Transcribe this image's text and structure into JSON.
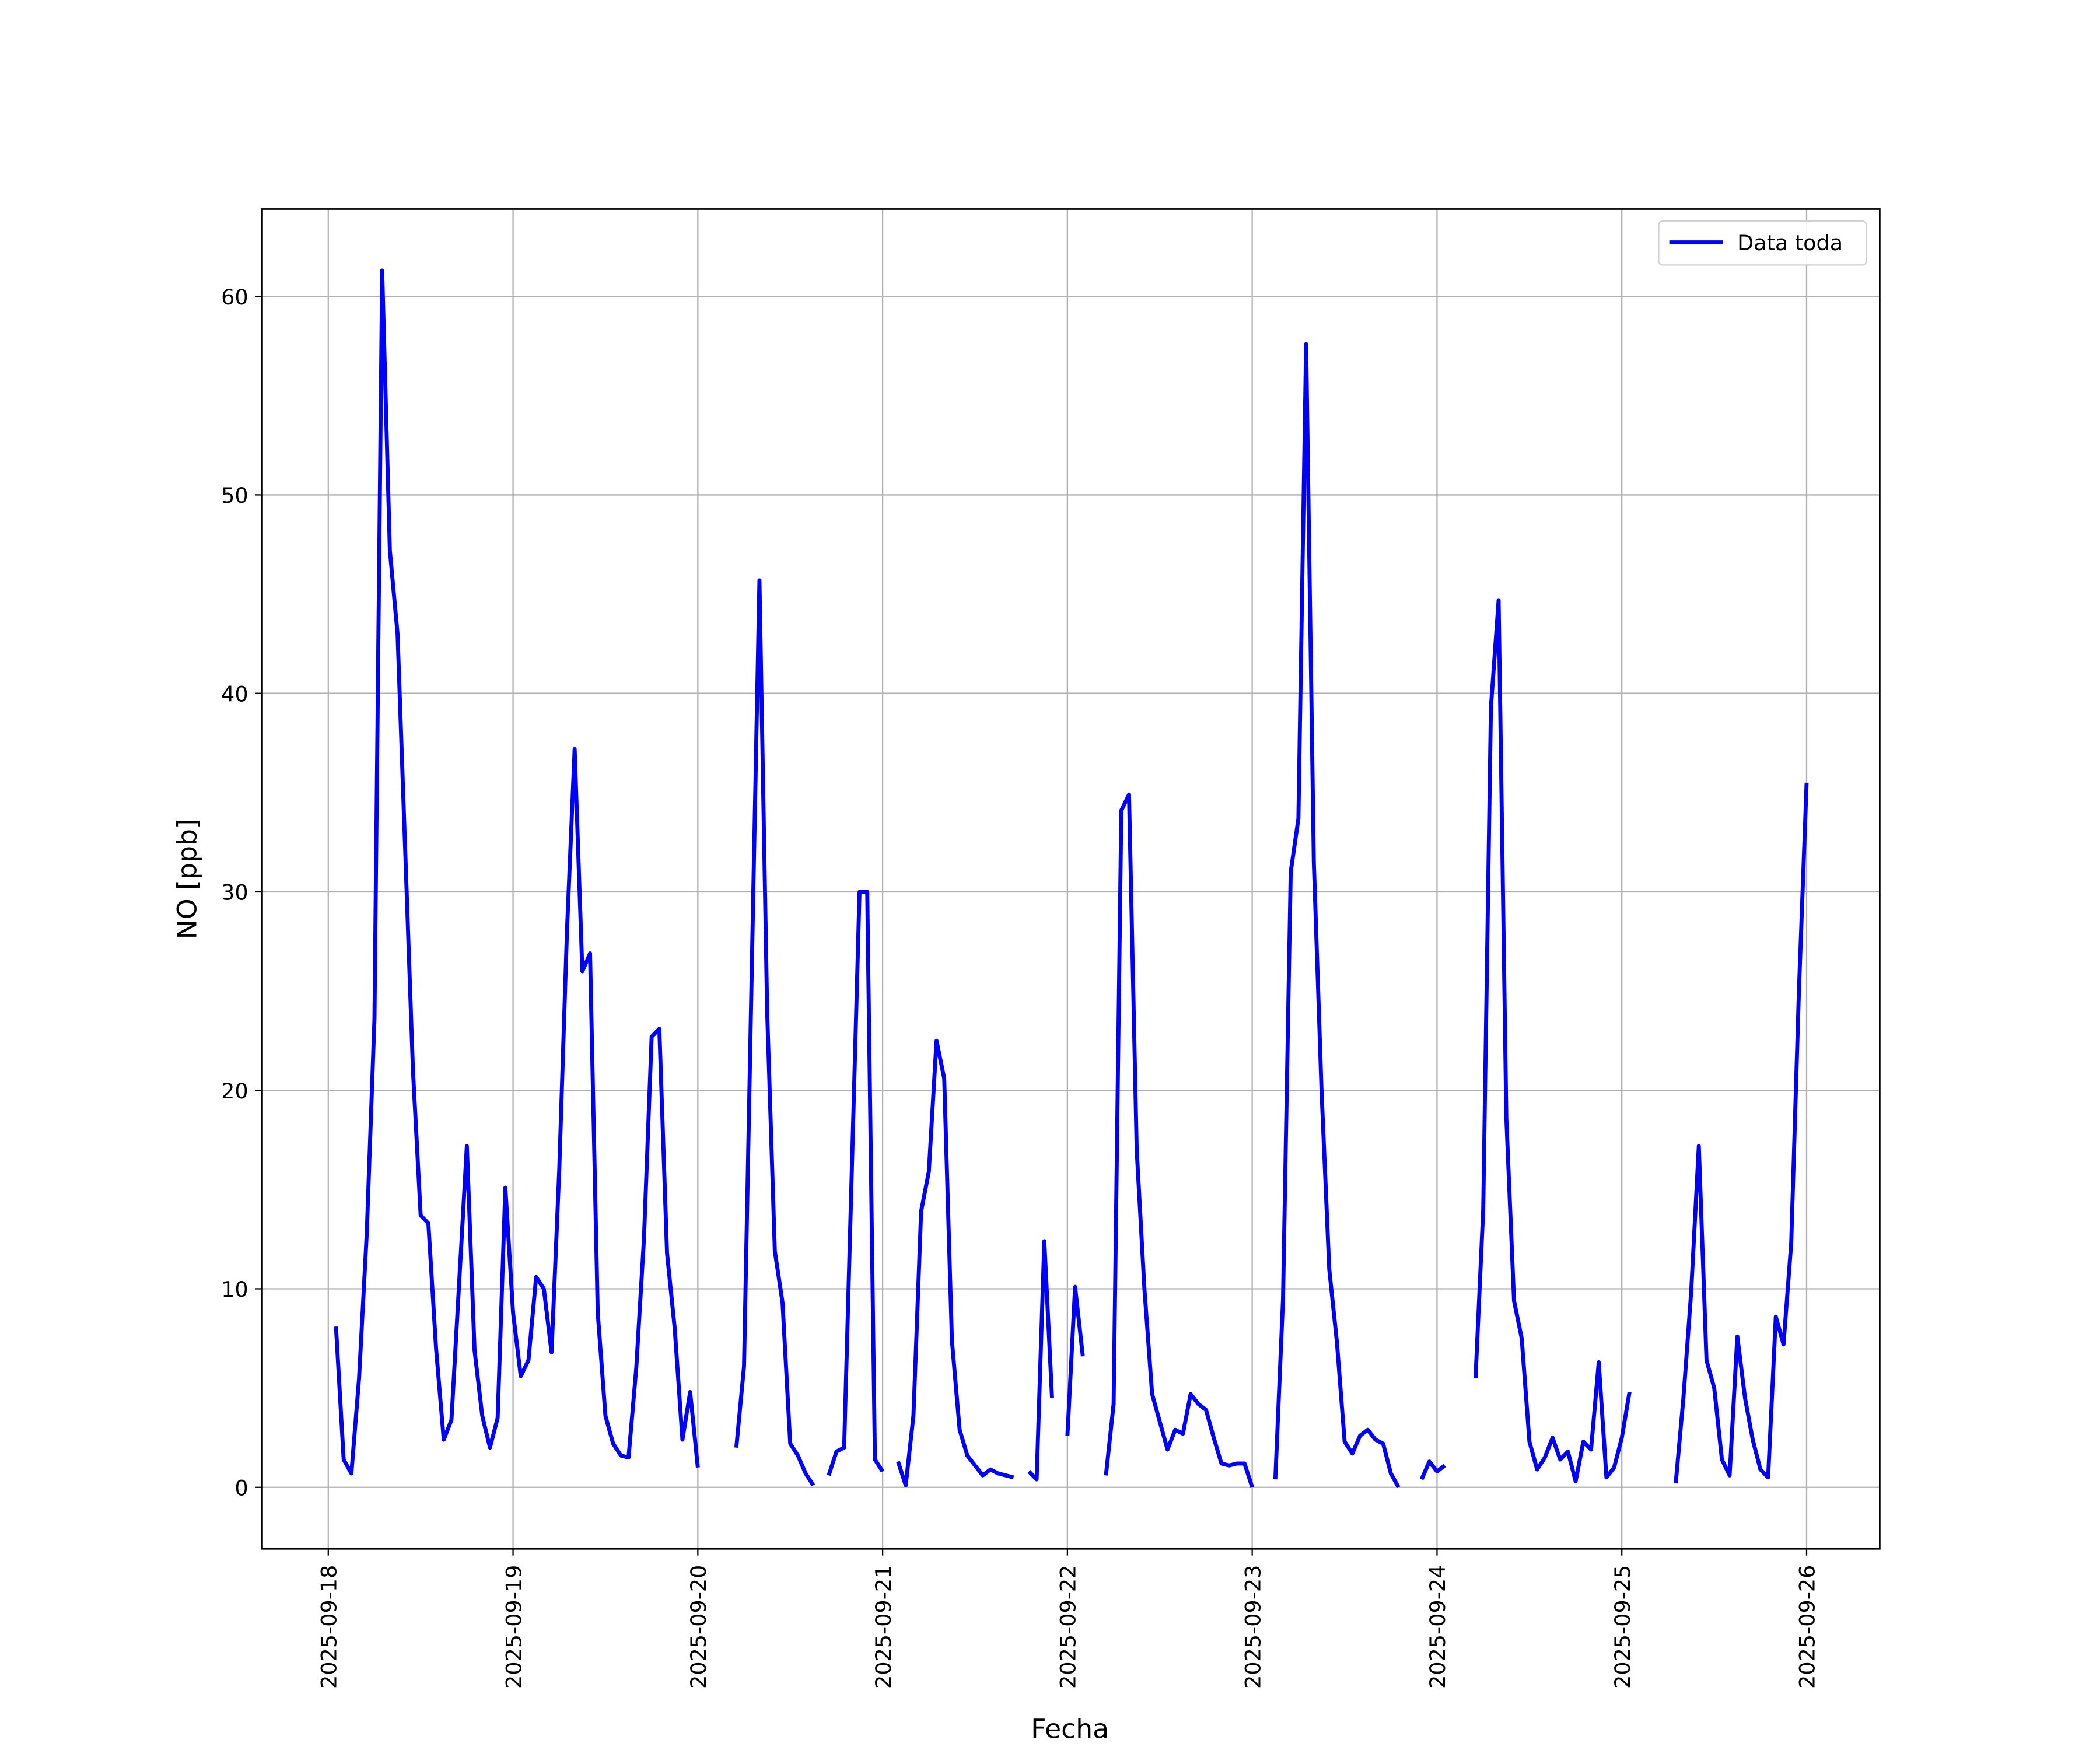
{
  "chart_data": {
    "type": "line",
    "xlabel": "Fecha",
    "ylabel": "NO [ppb]",
    "x": [
      "2025-09-18 01:00",
      "2025-09-18 02:00",
      "2025-09-18 03:00",
      "2025-09-18 04:00",
      "2025-09-18 05:00",
      "2025-09-18 06:00",
      "2025-09-18 07:00",
      "2025-09-18 08:00",
      "2025-09-18 09:00",
      "2025-09-18 10:00",
      "2025-09-18 11:00",
      "2025-09-18 12:00",
      "2025-09-18 13:00",
      "2025-09-18 14:00",
      "2025-09-18 15:00",
      "2025-09-18 16:00",
      "2025-09-18 17:00",
      "2025-09-18 18:00",
      "2025-09-18 19:00",
      "2025-09-18 20:00",
      "2025-09-18 21:00",
      "2025-09-18 22:00",
      "2025-09-18 23:00",
      "2025-09-19 00:00",
      "2025-09-19 01:00",
      "2025-09-19 02:00",
      "2025-09-19 03:00",
      "2025-09-19 04:00",
      "2025-09-19 05:00",
      "2025-09-19 06:00",
      "2025-09-19 07:00",
      "2025-09-19 08:00",
      "2025-09-19 09:00",
      "2025-09-19 10:00",
      "2025-09-19 11:00",
      "2025-09-19 12:00",
      "2025-09-19 13:00",
      "2025-09-19 14:00",
      "2025-09-19 15:00",
      "2025-09-19 16:00",
      "2025-09-19 17:00",
      "2025-09-19 18:00",
      "2025-09-19 19:00",
      "2025-09-19 20:00",
      "2025-09-19 21:00",
      "2025-09-19 22:00",
      "2025-09-19 23:00",
      "2025-09-20 00:00",
      "2025-09-20 01:00",
      "2025-09-20 02:00",
      "2025-09-20 03:00",
      "2025-09-20 04:00",
      "2025-09-20 05:00",
      "2025-09-20 06:00",
      "2025-09-20 07:00",
      "2025-09-20 08:00",
      "2025-09-20 09:00",
      "2025-09-20 10:00",
      "2025-09-20 11:00",
      "2025-09-20 12:00",
      "2025-09-20 13:00",
      "2025-09-20 14:00",
      "2025-09-20 15:00",
      "2025-09-20 16:00",
      "2025-09-20 17:00",
      "2025-09-20 18:00",
      "2025-09-20 19:00",
      "2025-09-20 20:00",
      "2025-09-20 21:00",
      "2025-09-20 22:00",
      "2025-09-20 23:00",
      "2025-09-21 00:00",
      "2025-09-21 01:00",
      "2025-09-21 02:00",
      "2025-09-21 03:00",
      "2025-09-21 04:00",
      "2025-09-21 05:00",
      "2025-09-21 06:00",
      "2025-09-21 07:00",
      "2025-09-21 08:00",
      "2025-09-21 09:00",
      "2025-09-21 10:00",
      "2025-09-21 11:00",
      "2025-09-21 12:00",
      "2025-09-21 13:00",
      "2025-09-21 14:00",
      "2025-09-21 15:00",
      "2025-09-21 16:00",
      "2025-09-21 17:00",
      "2025-09-21 18:00",
      "2025-09-21 19:00",
      "2025-09-21 20:00",
      "2025-09-21 21:00",
      "2025-09-21 22:00",
      "2025-09-21 23:00",
      "2025-09-22 00:00",
      "2025-09-22 01:00",
      "2025-09-22 02:00",
      "2025-09-22 03:00",
      "2025-09-22 04:00",
      "2025-09-22 05:00",
      "2025-09-22 06:00",
      "2025-09-22 07:00",
      "2025-09-22 08:00",
      "2025-09-22 09:00",
      "2025-09-22 10:00",
      "2025-09-22 11:00",
      "2025-09-22 12:00",
      "2025-09-22 13:00",
      "2025-09-22 14:00",
      "2025-09-22 15:00",
      "2025-09-22 16:00",
      "2025-09-22 17:00",
      "2025-09-22 18:00",
      "2025-09-22 19:00",
      "2025-09-22 20:00",
      "2025-09-22 21:00",
      "2025-09-22 22:00",
      "2025-09-22 23:00",
      "2025-09-23 00:00",
      "2025-09-23 01:00",
      "2025-09-23 02:00",
      "2025-09-23 03:00",
      "2025-09-23 04:00",
      "2025-09-23 05:00",
      "2025-09-23 06:00",
      "2025-09-23 07:00",
      "2025-09-23 08:00",
      "2025-09-23 09:00",
      "2025-09-23 10:00",
      "2025-09-23 11:00",
      "2025-09-23 12:00",
      "2025-09-23 13:00",
      "2025-09-23 14:00",
      "2025-09-23 15:00",
      "2025-09-23 16:00",
      "2025-09-23 17:00",
      "2025-09-23 18:00",
      "2025-09-23 19:00",
      "2025-09-23 20:00",
      "2025-09-23 21:00",
      "2025-09-23 22:00",
      "2025-09-23 23:00",
      "2025-09-24 00:00",
      "2025-09-24 01:00",
      "2025-09-24 02:00",
      "2025-09-24 03:00",
      "2025-09-24 04:00",
      "2025-09-24 05:00",
      "2025-09-24 06:00",
      "2025-09-24 07:00",
      "2025-09-24 08:00",
      "2025-09-24 09:00",
      "2025-09-24 10:00",
      "2025-09-24 11:00",
      "2025-09-24 12:00",
      "2025-09-24 13:00",
      "2025-09-24 14:00",
      "2025-09-24 15:00",
      "2025-09-24 16:00",
      "2025-09-24 17:00",
      "2025-09-24 18:00",
      "2025-09-24 19:00",
      "2025-09-24 20:00",
      "2025-09-24 21:00",
      "2025-09-24 22:00",
      "2025-09-24 23:00",
      "2025-09-25 00:00",
      "2025-09-25 01:00",
      "2025-09-25 02:00",
      "2025-09-25 03:00",
      "2025-09-25 04:00",
      "2025-09-25 05:00",
      "2025-09-25 06:00",
      "2025-09-25 07:00",
      "2025-09-25 08:00",
      "2025-09-25 09:00",
      "2025-09-25 10:00",
      "2025-09-25 11:00",
      "2025-09-25 12:00",
      "2025-09-25 13:00",
      "2025-09-25 14:00",
      "2025-09-25 15:00",
      "2025-09-25 16:00",
      "2025-09-25 17:00",
      "2025-09-25 18:00",
      "2025-09-25 19:00",
      "2025-09-25 20:00",
      "2025-09-25 21:00",
      "2025-09-25 22:00",
      "2025-09-25 23:00",
      "2025-09-26 00:00"
    ],
    "series": [
      {
        "name": "Data toda",
        "color": "#0000ff",
        "values": [
          8.1,
          1.4,
          0.7,
          5.5,
          12.8,
          23.6,
          61.3,
          47.2,
          43,
          32,
          21,
          13.7,
          13.3,
          7,
          2.4,
          3.4,
          10.3,
          17.2,
          6.9,
          3.6,
          2.0,
          3.5,
          15.1,
          8.8,
          5.6,
          6.4,
          10.6,
          10,
          6.8,
          16,
          28,
          37.2,
          26,
          26.9,
          8.8,
          3.6,
          2.2,
          1.6,
          1.5,
          6,
          12.5,
          22.7,
          23.1,
          11.8,
          8,
          2.4,
          4.8,
          1.0,
          null,
          null,
          null,
          null,
          2.0,
          6.1,
          26,
          45.7,
          24,
          11.9,
          9.3,
          2.2,
          1.6,
          0.7,
          0.1,
          null,
          0.6,
          1.8,
          2.0,
          16,
          30,
          30,
          1.4,
          0.8,
          null,
          1.3,
          0.1,
          3.6,
          13.9,
          15.9,
          22.5,
          20.6,
          7.4,
          2.9,
          1.6,
          1.1,
          0.6,
          0.9,
          0.7,
          0.6,
          0.5,
          null,
          0.8,
          0.4,
          12.4,
          4.5,
          null,
          2.6,
          10.1,
          6.6,
          null,
          null,
          0.6,
          4.2,
          34.1,
          34.9,
          17,
          10,
          4.7,
          3.3,
          1.9,
          2.9,
          2.7,
          4.7,
          4.2,
          3.9,
          2.5,
          1.2,
          1.1,
          1.2,
          1.2,
          0.0,
          null,
          null,
          0.4,
          9.5,
          31,
          33.7,
          57.6,
          31.5,
          20,
          11,
          7.3,
          2.3,
          1.7,
          2.6,
          2.9,
          2.4,
          2.2,
          0.7,
          0,
          null,
          null,
          0.4,
          1.3,
          0.8,
          1.1,
          null,
          null,
          null,
          5.5,
          14,
          39.3,
          44.7,
          18.6,
          9.4,
          7.5,
          2.3,
          0.9,
          1.5,
          2.5,
          1.4,
          1.8,
          0.3,
          2.3,
          1.9,
          6.3,
          0.5,
          1.0,
          2.5,
          4.8,
          null,
          null,
          null,
          null,
          null,
          0.2,
          4.5,
          9.8,
          17.2,
          6.4,
          5,
          1.4,
          0.6,
          7.6,
          4.5,
          2.4,
          0.9,
          0.5,
          8.6,
          7.2,
          12.3,
          25,
          35.5
        ]
      }
    ],
    "xlim": [
      "2025-09-17 15:20",
      "2025-09-26 09:30"
    ],
    "xticks": [
      "2025-09-18",
      "2025-09-19",
      "2025-09-20",
      "2025-09-21",
      "2025-09-22",
      "2025-09-23",
      "2025-09-24",
      "2025-09-25",
      "2025-09-26"
    ],
    "ylim": [
      -3.1,
      64.4
    ],
    "yticks": [
      0,
      10,
      20,
      30,
      40,
      50,
      60
    ],
    "grid": true,
    "legend": "upper right"
  }
}
